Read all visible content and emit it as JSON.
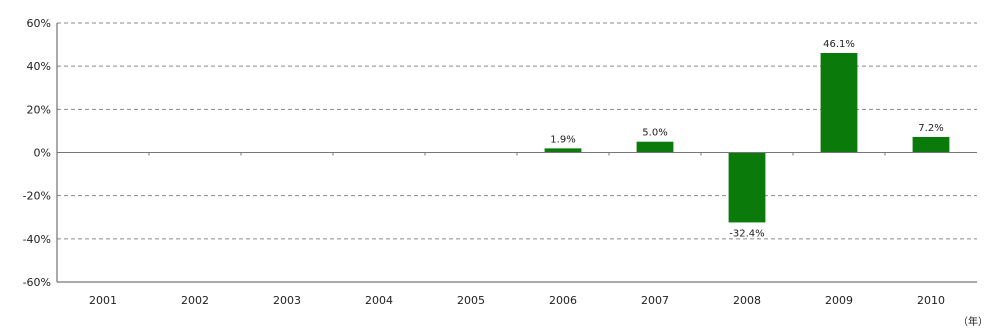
{
  "chart_data": {
    "type": "bar",
    "title": "",
    "xlabel": "",
    "ylabel": "",
    "x_unit_label": "（年）",
    "categories": [
      "2001",
      "2002",
      "2003",
      "2004",
      "2005",
      "2006",
      "2007",
      "2008",
      "2009",
      "2010"
    ],
    "values": [
      null,
      null,
      null,
      null,
      null,
      1.9,
      5.0,
      -32.4,
      46.1,
      7.2
    ],
    "data_labels": [
      "",
      "",
      "",
      "",
      "",
      "1.9%",
      "5.0%",
      "-32.4%",
      "46.1%",
      "7.2%"
    ],
    "ylim": [
      -60,
      60
    ],
    "yticks": [
      -60,
      -40,
      -20,
      0,
      20,
      40,
      60
    ],
    "ytick_labels": [
      "-60%",
      "-40%",
      "-20%",
      "0%",
      "20%",
      "40%",
      "60%"
    ],
    "grid": true,
    "legend": "none",
    "bar_color": "#0a7a0a"
  }
}
